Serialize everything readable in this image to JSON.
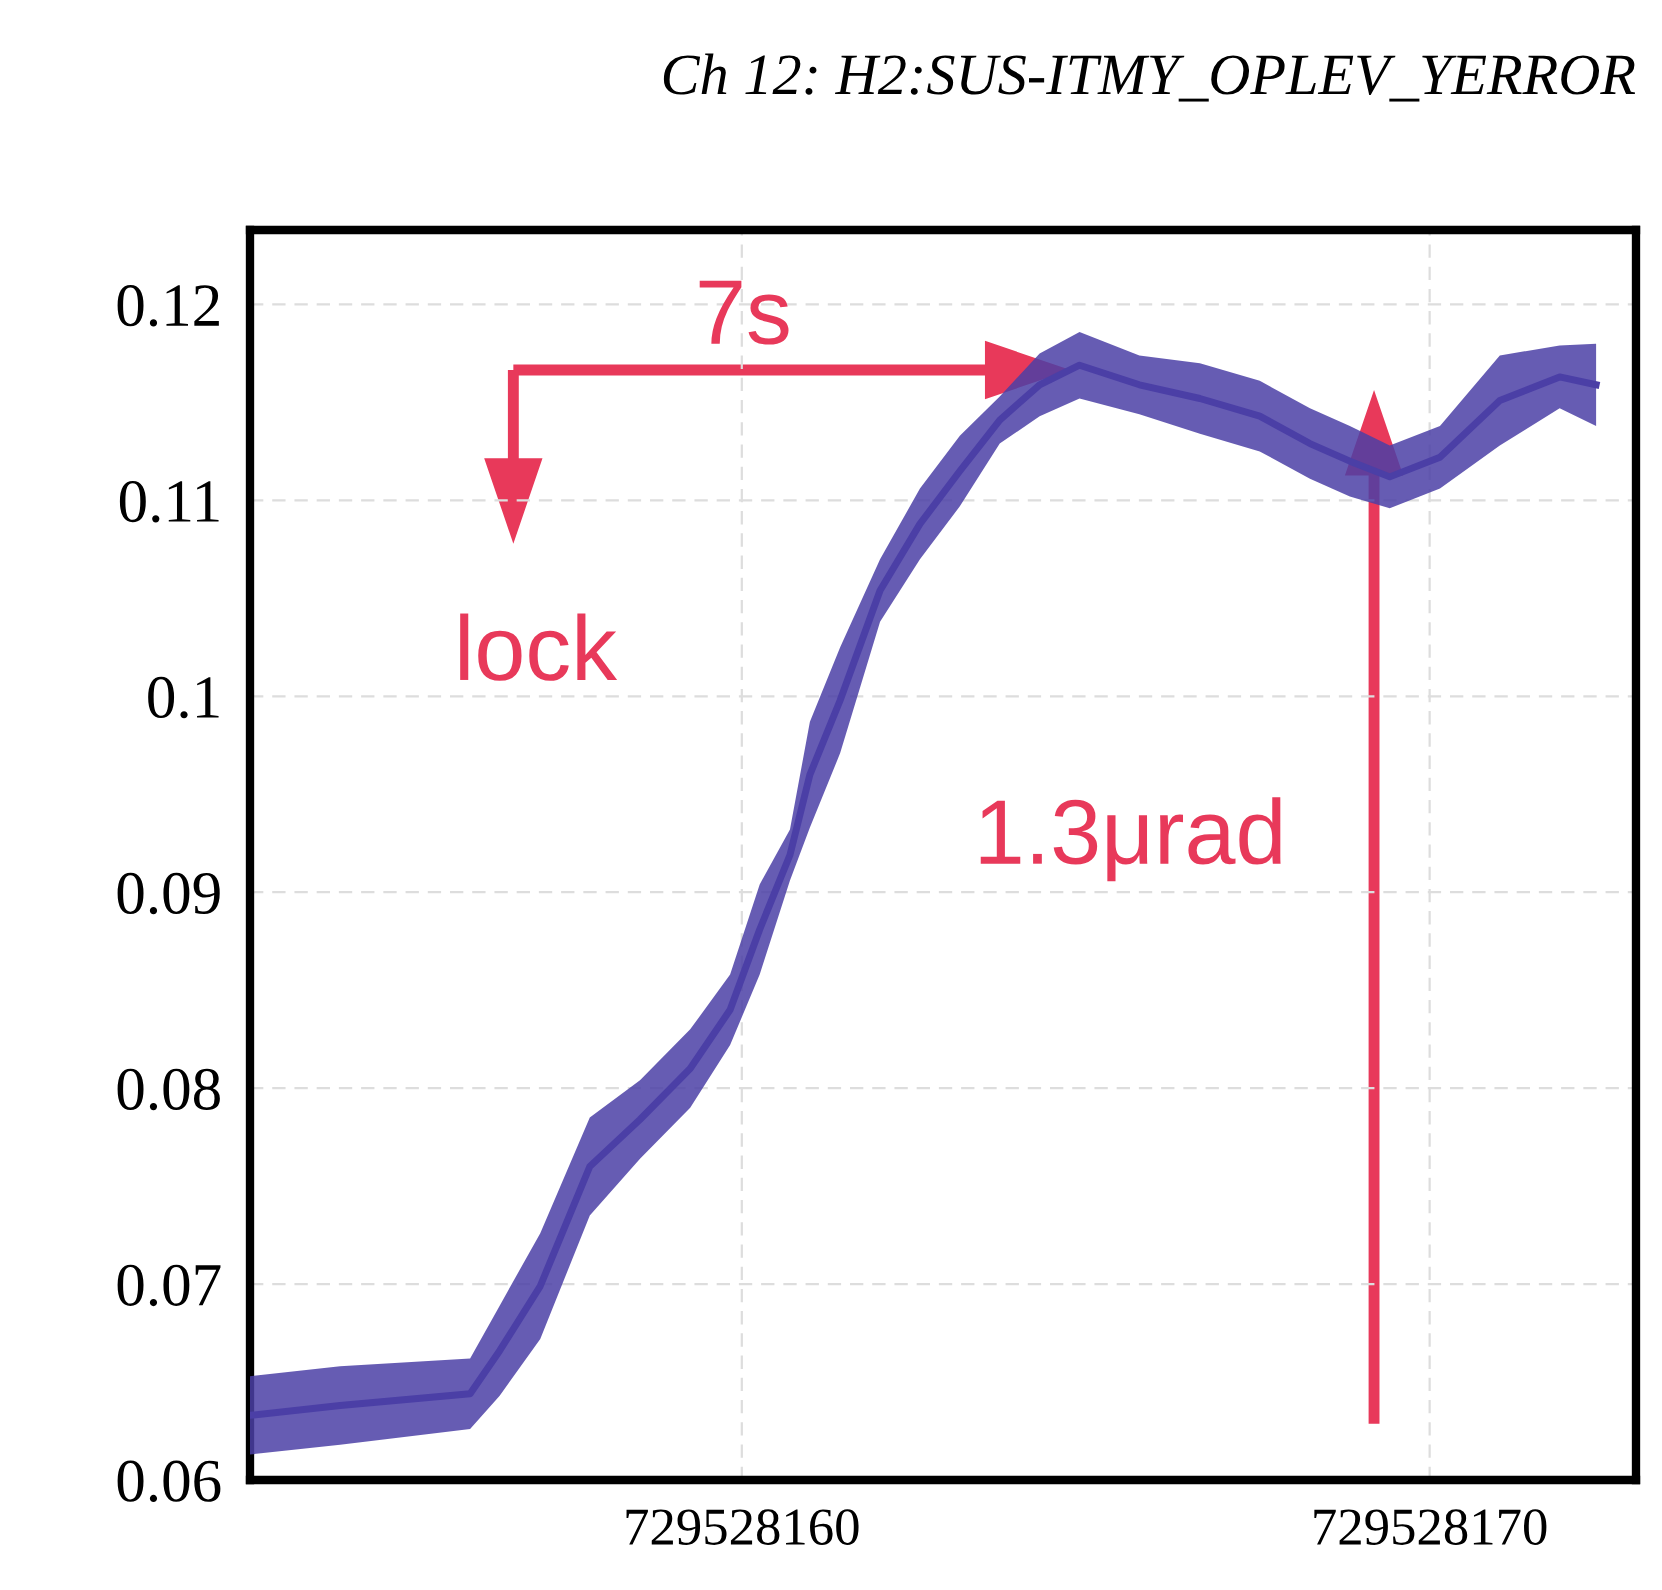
{
  "chart_data": {
    "type": "line",
    "title": "Ch 12: H2:SUS-ITMY_OPLEV_YERROR",
    "xlim": [
      729528152.85,
      729528173.0
    ],
    "xticks": [
      729528160,
      729528170
    ],
    "ylim": [
      0.06,
      0.1238
    ],
    "yticks": [
      0.06,
      0.07,
      0.08,
      0.09,
      0.1,
      0.11,
      0.12
    ],
    "grid": true,
    "series": [
      {
        "color": "#4b3fa6",
        "x": [
          729528152.85,
          729528154.16,
          729528156.05,
          729528156.48,
          729528157.07,
          729528157.79,
          729528158.52,
          729528159.25,
          729528159.83,
          729528160.26,
          729528160.7,
          729528160.99,
          729528161.43,
          729528162.01,
          729528162.59,
          729528163.17,
          729528163.75,
          729528164.33,
          729528164.91,
          729528165.78,
          729528166.66,
          729528167.53,
          729528168.26,
          729528168.84,
          729528169.42,
          729528170.15,
          729528171.02,
          729528171.89,
          729528172.42
        ],
        "values": [
          0.0633,
          0.0638,
          0.0644,
          0.0666,
          0.0699,
          0.076,
          0.0784,
          0.081,
          0.084,
          0.0881,
          0.0919,
          0.096,
          0.0998,
          0.1054,
          0.1088,
          0.1115,
          0.1141,
          0.1159,
          0.1169,
          0.1159,
          0.1152,
          0.1143,
          0.1129,
          0.112,
          0.1112,
          0.1122,
          0.1151,
          0.1163,
          0.1159
        ],
        "lower": [
          0.0613,
          0.0618,
          0.0626,
          0.0643,
          0.0672,
          0.0735,
          0.0764,
          0.079,
          0.0822,
          0.0858,
          0.0906,
          0.0933,
          0.0971,
          0.1038,
          0.107,
          0.1097,
          0.1129,
          0.1143,
          0.1152,
          0.1144,
          0.1134,
          0.1125,
          0.1111,
          0.1102,
          0.1096,
          0.1106,
          0.1128,
          0.1147,
          0.1138
        ],
        "upper": [
          0.0653,
          0.0658,
          0.0662,
          0.0689,
          0.0726,
          0.0785,
          0.0804,
          0.083,
          0.0858,
          0.0904,
          0.0932,
          0.0987,
          0.1025,
          0.107,
          0.1106,
          0.1133,
          0.1153,
          0.1175,
          0.1186,
          0.1174,
          0.117,
          0.1161,
          0.1147,
          0.1138,
          0.1128,
          0.1138,
          0.1174,
          0.1179,
          0.118
        ]
      }
    ],
    "annotations": [
      "7s",
      "lock",
      "1.3μrad"
    ]
  }
}
